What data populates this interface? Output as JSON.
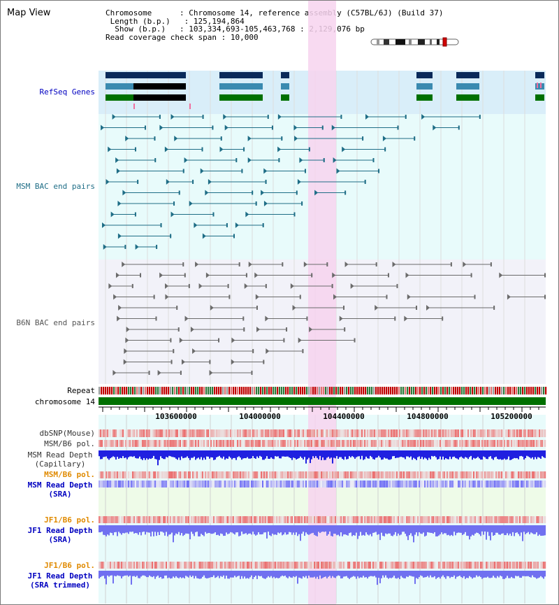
{
  "view_title": "Map View",
  "info": {
    "chromosome_label": "Chromosome",
    "chromosome_value": "Chromosome 14, reference assembly (C57BL/6J) (Build 37)",
    "length_label": "Length (b.p.)",
    "length_value": "125,194,864",
    "show_label": "Show (b.p.)",
    "show_value": "103,334,693-105,463,768 : 2,129,076 bp",
    "coverage_label": "Read coverage check span",
    "coverage_value": "10,000"
  },
  "tracks": {
    "refseq": "RefSeq Genes",
    "msm_bac": "MSM BAC end pairs",
    "b6n_bac": "B6N BAC end pairs",
    "repeat": "Repeat",
    "chromosome": "chromosome 14",
    "dbsnp": "dbSNP(Mouse)",
    "msm_b6_pol_cap": "MSM/B6 pol.",
    "msm_depth_cap_1": "MSM Read Depth",
    "msm_depth_cap_2": "(Capillary)",
    "msm_b6_pol_sra": "MSM/B6 pol.",
    "msm_depth_sra_1": "MSM Read Depth",
    "msm_depth_sra_2": "(SRA)",
    "jf1_b6_pol_sra": "JF1/B6 pol.",
    "jf1_depth_sra_1": "JF1 Read Depth",
    "jf1_depth_sra_2": "(SRA)",
    "jf1_b6_pol_trim": "JF1/B6 pol.",
    "jf1_depth_trim_1": "JF1 Read Depth",
    "jf1_depth_trim_2": "(SRA trimmed)"
  },
  "axis": {
    "ticks": [
      "103600000",
      "104000000",
      "104400000",
      "104800000",
      "105200000"
    ]
  },
  "colors": {
    "refseq_bg": "#d9eef9",
    "bac_bg": "#e8fbfb",
    "b6n_bg": "#f2f2f9",
    "highlight": "#f7d4ef",
    "msm_bac_color": "#1e6d86",
    "b6n_bac_color": "#6b6b6b",
    "chromosome_green": "#007000",
    "label_blue": "#0000c0",
    "label_orange": "#e08a00",
    "depth_blue": "#2020e0",
    "depth_light_blue": "#7070f0"
  }
}
